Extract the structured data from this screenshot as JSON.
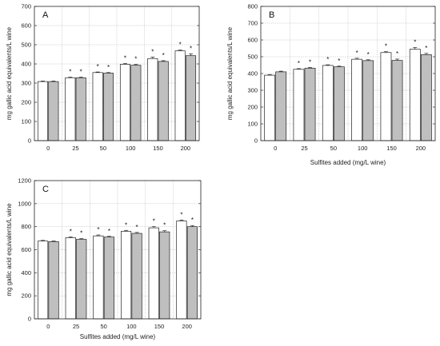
{
  "chart_data": [
    {
      "type": "bar",
      "panel_label": "A",
      "categories": [
        "0",
        "25",
        "50",
        "100",
        "150",
        "200"
      ],
      "xlabel": "",
      "ylabel": "mg gallic acid equivalents/L wine",
      "ylim": [
        0,
        700
      ],
      "yticks": [
        "0",
        "100",
        "200",
        "300",
        "400",
        "500",
        "600",
        "700"
      ],
      "grid": "on",
      "series": [
        {
          "color": "#ffffff",
          "values": [
            308,
            328,
            355,
            398,
            428,
            468
          ],
          "errors": [
            3,
            3,
            3,
            4,
            8,
            4
          ],
          "significant": [
            false,
            true,
            true,
            true,
            true,
            true
          ]
        },
        {
          "color": "#bfbfbf",
          "values": [
            308,
            328,
            352,
            393,
            413,
            443
          ],
          "errors": [
            3,
            3,
            3,
            4,
            4,
            10
          ],
          "significant": [
            false,
            true,
            true,
            true,
            true,
            true
          ]
        }
      ]
    },
    {
      "type": "bar",
      "panel_label": "B",
      "categories": [
        "0",
        "25",
        "50",
        "100",
        "150",
        "200"
      ],
      "xlabel": "Sulfites added (mg/L wine)",
      "ylabel": "mg gallic acid equivalents/L wine",
      "ylim": [
        0,
        800
      ],
      "yticks": [
        "0",
        "100",
        "200",
        "300",
        "400",
        "500",
        "600",
        "700",
        "800"
      ],
      "grid": "on",
      "series": [
        {
          "color": "#ffffff",
          "values": [
            390,
            425,
            448,
            485,
            525,
            545
          ],
          "errors": [
            4,
            4,
            4,
            6,
            5,
            10
          ],
          "significant": [
            false,
            true,
            true,
            true,
            true,
            true
          ]
        },
        {
          "color": "#bfbfbf",
          "values": [
            410,
            432,
            440,
            477,
            478,
            512
          ],
          "errors": [
            4,
            4,
            4,
            5,
            8,
            8
          ],
          "significant": [
            false,
            true,
            true,
            true,
            true,
            true
          ]
        }
      ]
    },
    {
      "type": "bar",
      "panel_label": "C",
      "categories": [
        "0",
        "25",
        "50",
        "100",
        "150",
        "200"
      ],
      "xlabel": "Sulfites added (mg/L wine)",
      "ylabel": "mg gallic acid equivalents/L wine",
      "ylim": [
        0,
        1200
      ],
      "yticks": [
        "0",
        "200",
        "400",
        "600",
        "800",
        "1000",
        "1200"
      ],
      "grid": "on",
      "series": [
        {
          "color": "#ffffff",
          "values": [
            675,
            705,
            720,
            760,
            790,
            850
          ],
          "errors": [
            6,
            6,
            8,
            8,
            10,
            8
          ],
          "significant": [
            false,
            true,
            true,
            true,
            true,
            true
          ]
        },
        {
          "color": "#bfbfbf",
          "values": [
            670,
            690,
            710,
            742,
            755,
            800
          ],
          "errors": [
            6,
            6,
            6,
            8,
            10,
            10
          ],
          "significant": [
            false,
            true,
            true,
            true,
            true,
            true
          ]
        }
      ]
    }
  ],
  "significance_marker": "*"
}
